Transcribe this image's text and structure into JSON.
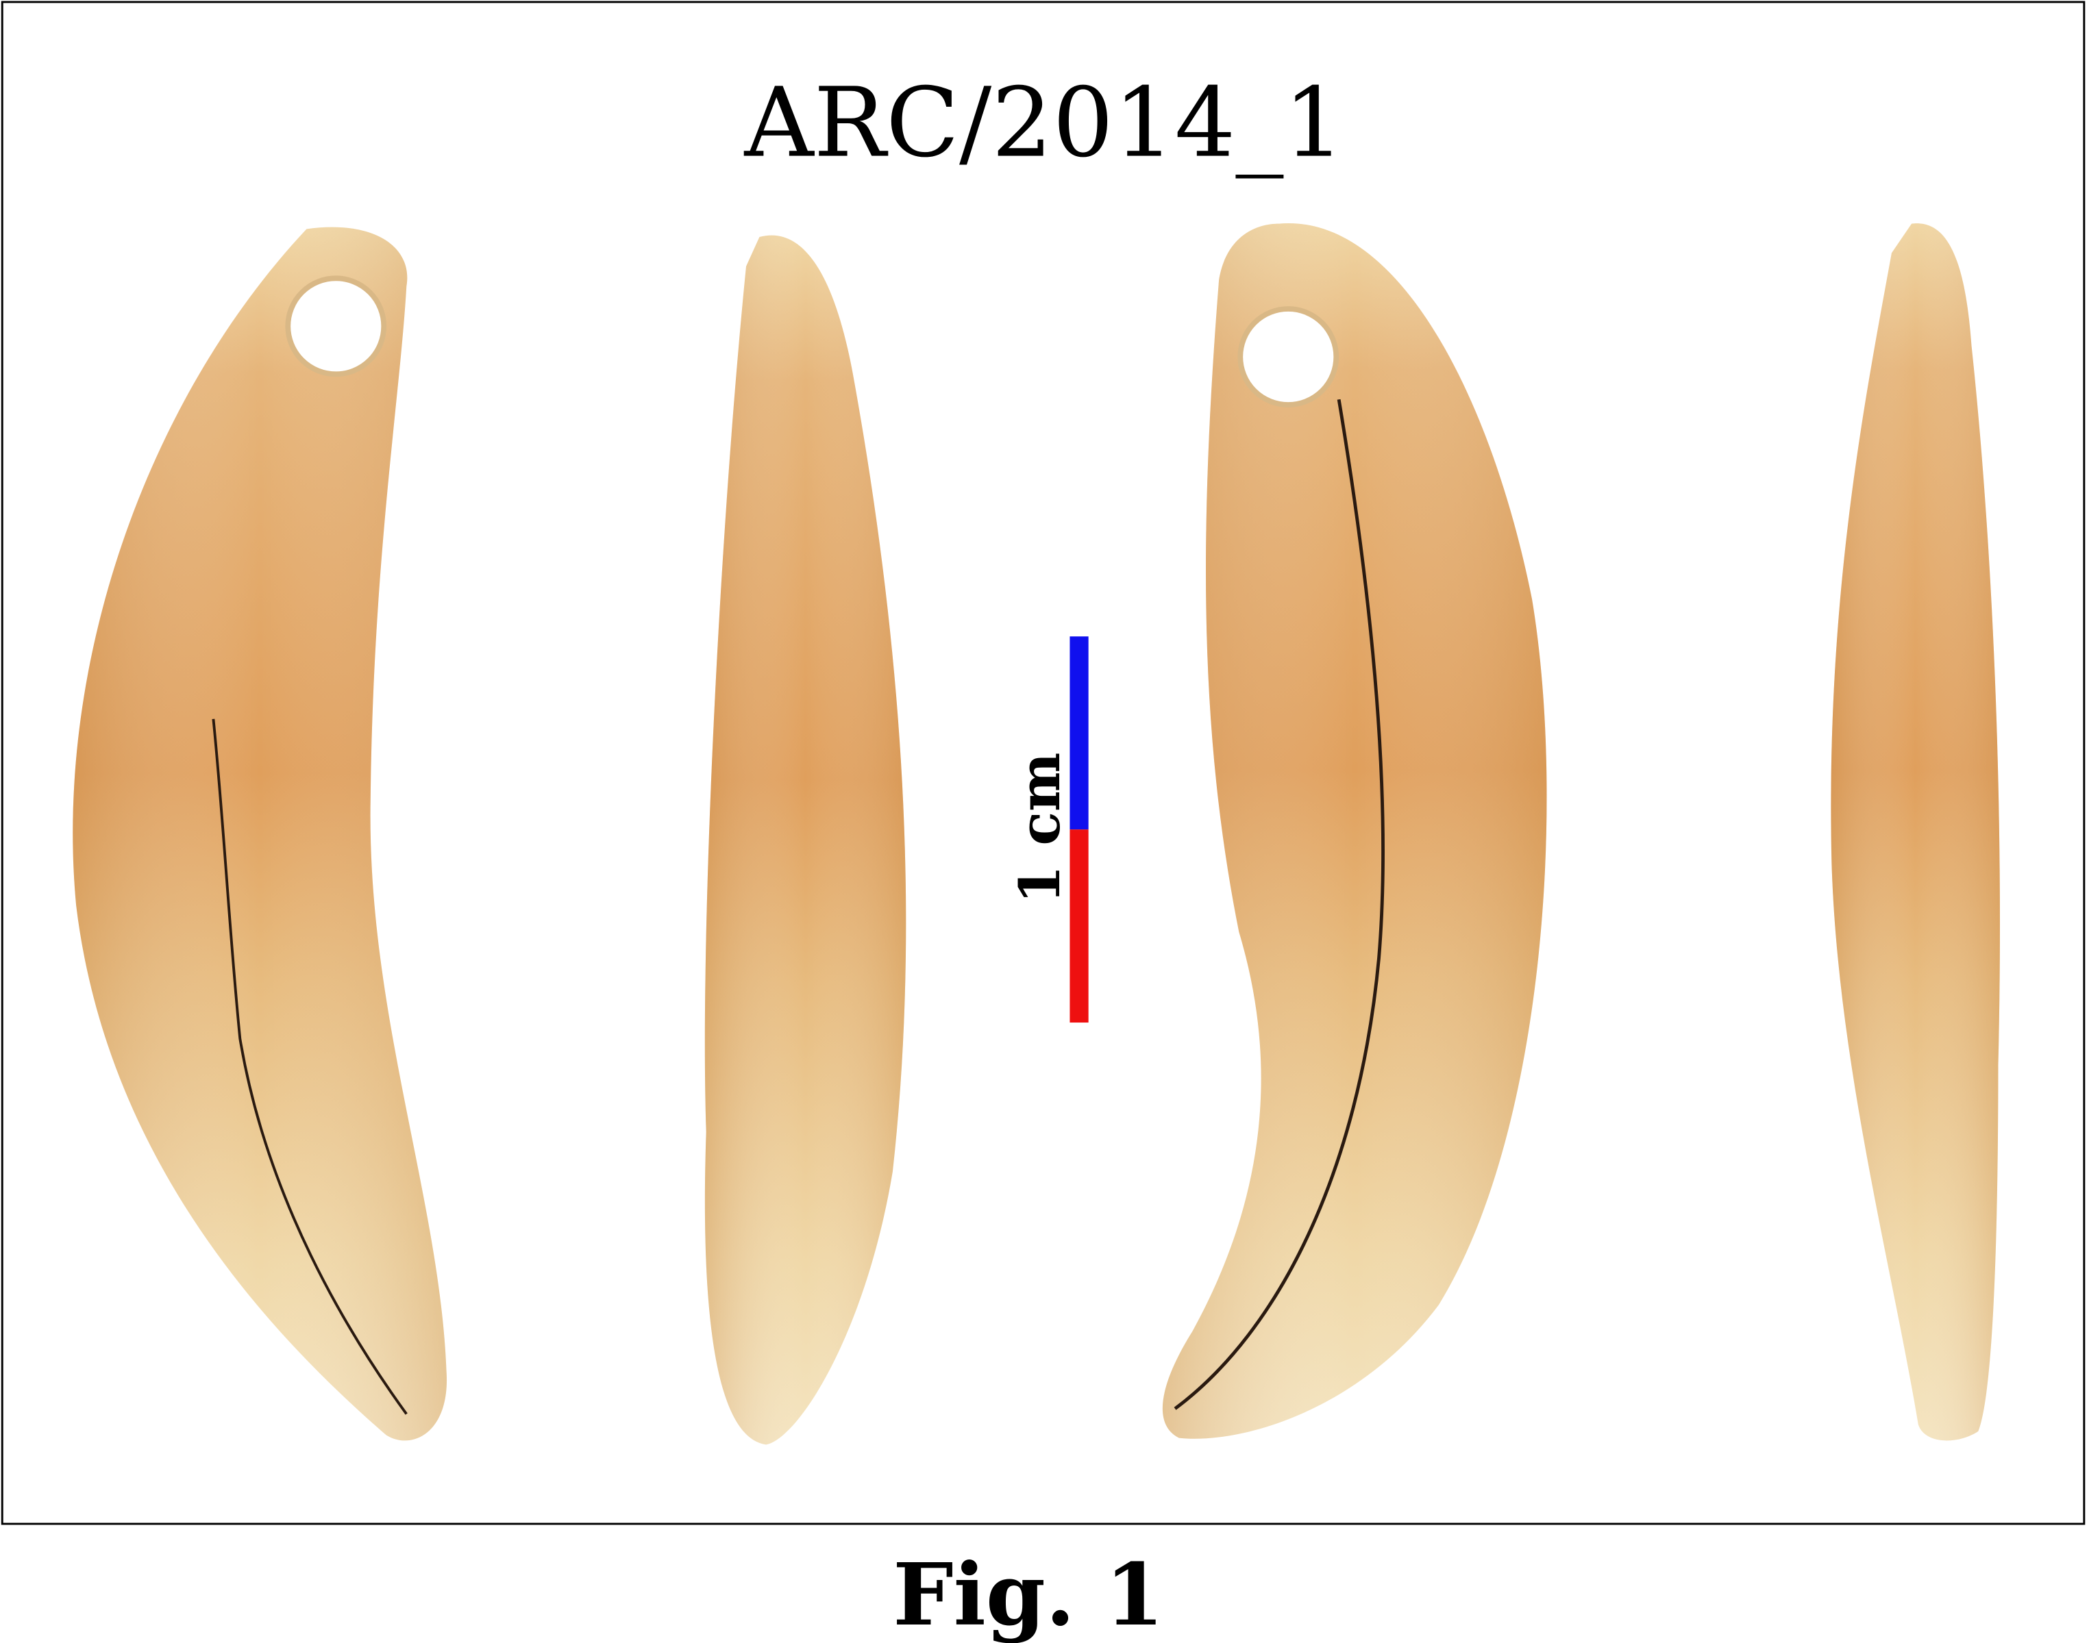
{
  "figure": {
    "title": "ARC/2014_1",
    "caption": "Fig. 1",
    "scale_bar": {
      "label": "1 cm",
      "upper_color": "#1010ee",
      "lower_color": "#ee1010"
    },
    "frame_color": "#000000",
    "specimen_views": [
      {
        "name": "view-1",
        "perforated": true
      },
      {
        "name": "view-2",
        "perforated": false
      },
      {
        "name": "view-3",
        "perforated": true
      },
      {
        "name": "view-4",
        "perforated": false
      }
    ],
    "colors": {
      "enamel_upper": "#e0a15e",
      "enamel_mid": "#e8b878",
      "enamel_lower": "#f1dcae",
      "crack": "#2a1a10"
    }
  }
}
